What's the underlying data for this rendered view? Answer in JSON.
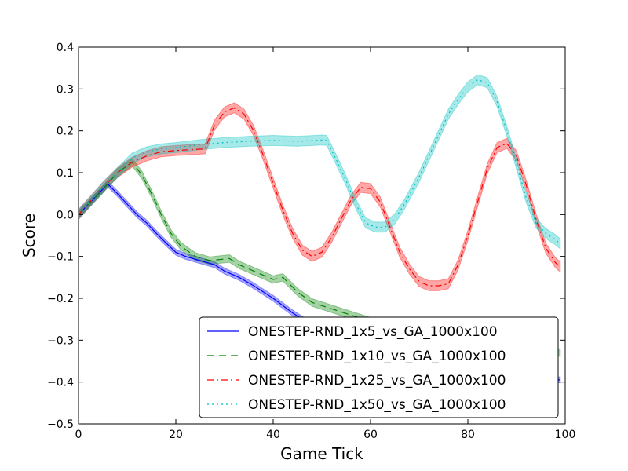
{
  "chart_data": {
    "type": "line",
    "title": "",
    "xlabel": "Game Tick",
    "ylabel": "Score",
    "xlim": [
      0,
      100
    ],
    "ylim": [
      -0.5,
      0.4
    ],
    "xticks": [
      0,
      20,
      40,
      60,
      80,
      100
    ],
    "yticks": [
      -0.5,
      -0.4,
      -0.3,
      -0.2,
      -0.1,
      0.0,
      0.1,
      0.2,
      0.3,
      0.4
    ],
    "xtick_labels": [
      "0",
      "20",
      "40",
      "60",
      "80",
      "100"
    ],
    "ytick_labels": [
      "−0.5",
      "−0.4",
      "−0.3",
      "−0.2",
      "−0.1",
      "0.0",
      "0.1",
      "0.2",
      "0.3",
      "0.4"
    ],
    "grid": false,
    "legend": {
      "position": "lower-right",
      "frame": true
    },
    "series": [
      {
        "name": "ONESTEP-RND_1x5_vs_GA_1000x100",
        "color": "#0000ff",
        "style": "solid",
        "x": [
          0,
          6,
          8,
          10,
          12,
          14,
          16,
          18,
          20,
          22,
          25,
          28,
          30,
          33,
          36,
          40,
          44,
          48,
          52,
          56,
          60,
          65,
          70,
          75,
          80,
          85,
          90,
          95,
          99
        ],
        "y": [
          0.0,
          0.073,
          0.05,
          0.025,
          0.0,
          -0.02,
          -0.045,
          -0.068,
          -0.09,
          -0.1,
          -0.11,
          -0.12,
          -0.135,
          -0.15,
          -0.17,
          -0.2,
          -0.235,
          -0.265,
          -0.29,
          -0.31,
          -0.325,
          -0.34,
          -0.355,
          -0.365,
          -0.375,
          -0.38,
          -0.385,
          -0.39,
          -0.395
        ],
        "band": 0.007
      },
      {
        "name": "ONESTEP-RND_1x10_vs_GA_1000x100",
        "color": "#008000",
        "style": "dashed",
        "x": [
          0,
          5,
          8,
          11,
          13,
          15,
          17,
          19,
          21,
          24,
          27,
          31,
          33,
          36,
          40,
          42,
          45,
          48,
          52,
          56,
          60,
          65,
          70,
          75,
          80,
          85,
          90,
          95,
          99
        ],
        "y": [
          0.0,
          0.06,
          0.1,
          0.125,
          0.095,
          0.05,
          0.0,
          -0.045,
          -0.075,
          -0.1,
          -0.11,
          -0.105,
          -0.12,
          -0.135,
          -0.155,
          -0.15,
          -0.185,
          -0.21,
          -0.225,
          -0.24,
          -0.255,
          -0.27,
          -0.285,
          -0.295,
          -0.305,
          -0.31,
          -0.315,
          -0.32,
          -0.33
        ],
        "band": 0.009
      },
      {
        "name": "ONESTEP-RND_1x25_vs_GA_1000x100",
        "color": "#ff0000",
        "style": "dashdot",
        "x": [
          0,
          5,
          8,
          11,
          14,
          17,
          20,
          23,
          26,
          28,
          30,
          32,
          34,
          36,
          38,
          40,
          42,
          44,
          46,
          48,
          50,
          52,
          54,
          56,
          58,
          60,
          62,
          64,
          66,
          68,
          70,
          72,
          74,
          76,
          78,
          80,
          82,
          84,
          86,
          88,
          90,
          92,
          94,
          96,
          98,
          99
        ],
        "y": [
          0.0,
          0.065,
          0.1,
          0.125,
          0.14,
          0.15,
          0.153,
          0.155,
          0.157,
          0.215,
          0.245,
          0.255,
          0.24,
          0.2,
          0.14,
          0.075,
          0.01,
          -0.045,
          -0.085,
          -0.1,
          -0.09,
          -0.055,
          -0.01,
          0.035,
          0.065,
          0.062,
          0.03,
          -0.03,
          -0.09,
          -0.13,
          -0.16,
          -0.17,
          -0.17,
          -0.165,
          -0.12,
          -0.05,
          0.03,
          0.11,
          0.16,
          0.17,
          0.14,
          0.07,
          -0.01,
          -0.08,
          -0.115,
          -0.125
        ],
        "band": 0.012
      },
      {
        "name": "ONESTEP-RND_1x50_vs_GA_1000x100",
        "color": "#00bfbf",
        "style": "dotted",
        "x": [
          0,
          5,
          8,
          11,
          14,
          17,
          20,
          25,
          30,
          35,
          40,
          45,
          50,
          51,
          53,
          55,
          57,
          59,
          61,
          63,
          65,
          67,
          70,
          72,
          74,
          76,
          78,
          80,
          82,
          84,
          86,
          88,
          90,
          92,
          94,
          96,
          98,
          99
        ],
        "y": [
          0.0,
          0.065,
          0.1,
          0.135,
          0.15,
          0.157,
          0.16,
          0.167,
          0.172,
          0.175,
          0.177,
          0.175,
          0.178,
          0.177,
          0.13,
          0.08,
          0.025,
          -0.02,
          -0.03,
          -0.03,
          -0.01,
          0.025,
          0.09,
          0.14,
          0.19,
          0.24,
          0.275,
          0.305,
          0.322,
          0.315,
          0.27,
          0.2,
          0.12,
          0.04,
          -0.02,
          -0.045,
          -0.06,
          -0.07
        ],
        "band": 0.012
      }
    ]
  }
}
